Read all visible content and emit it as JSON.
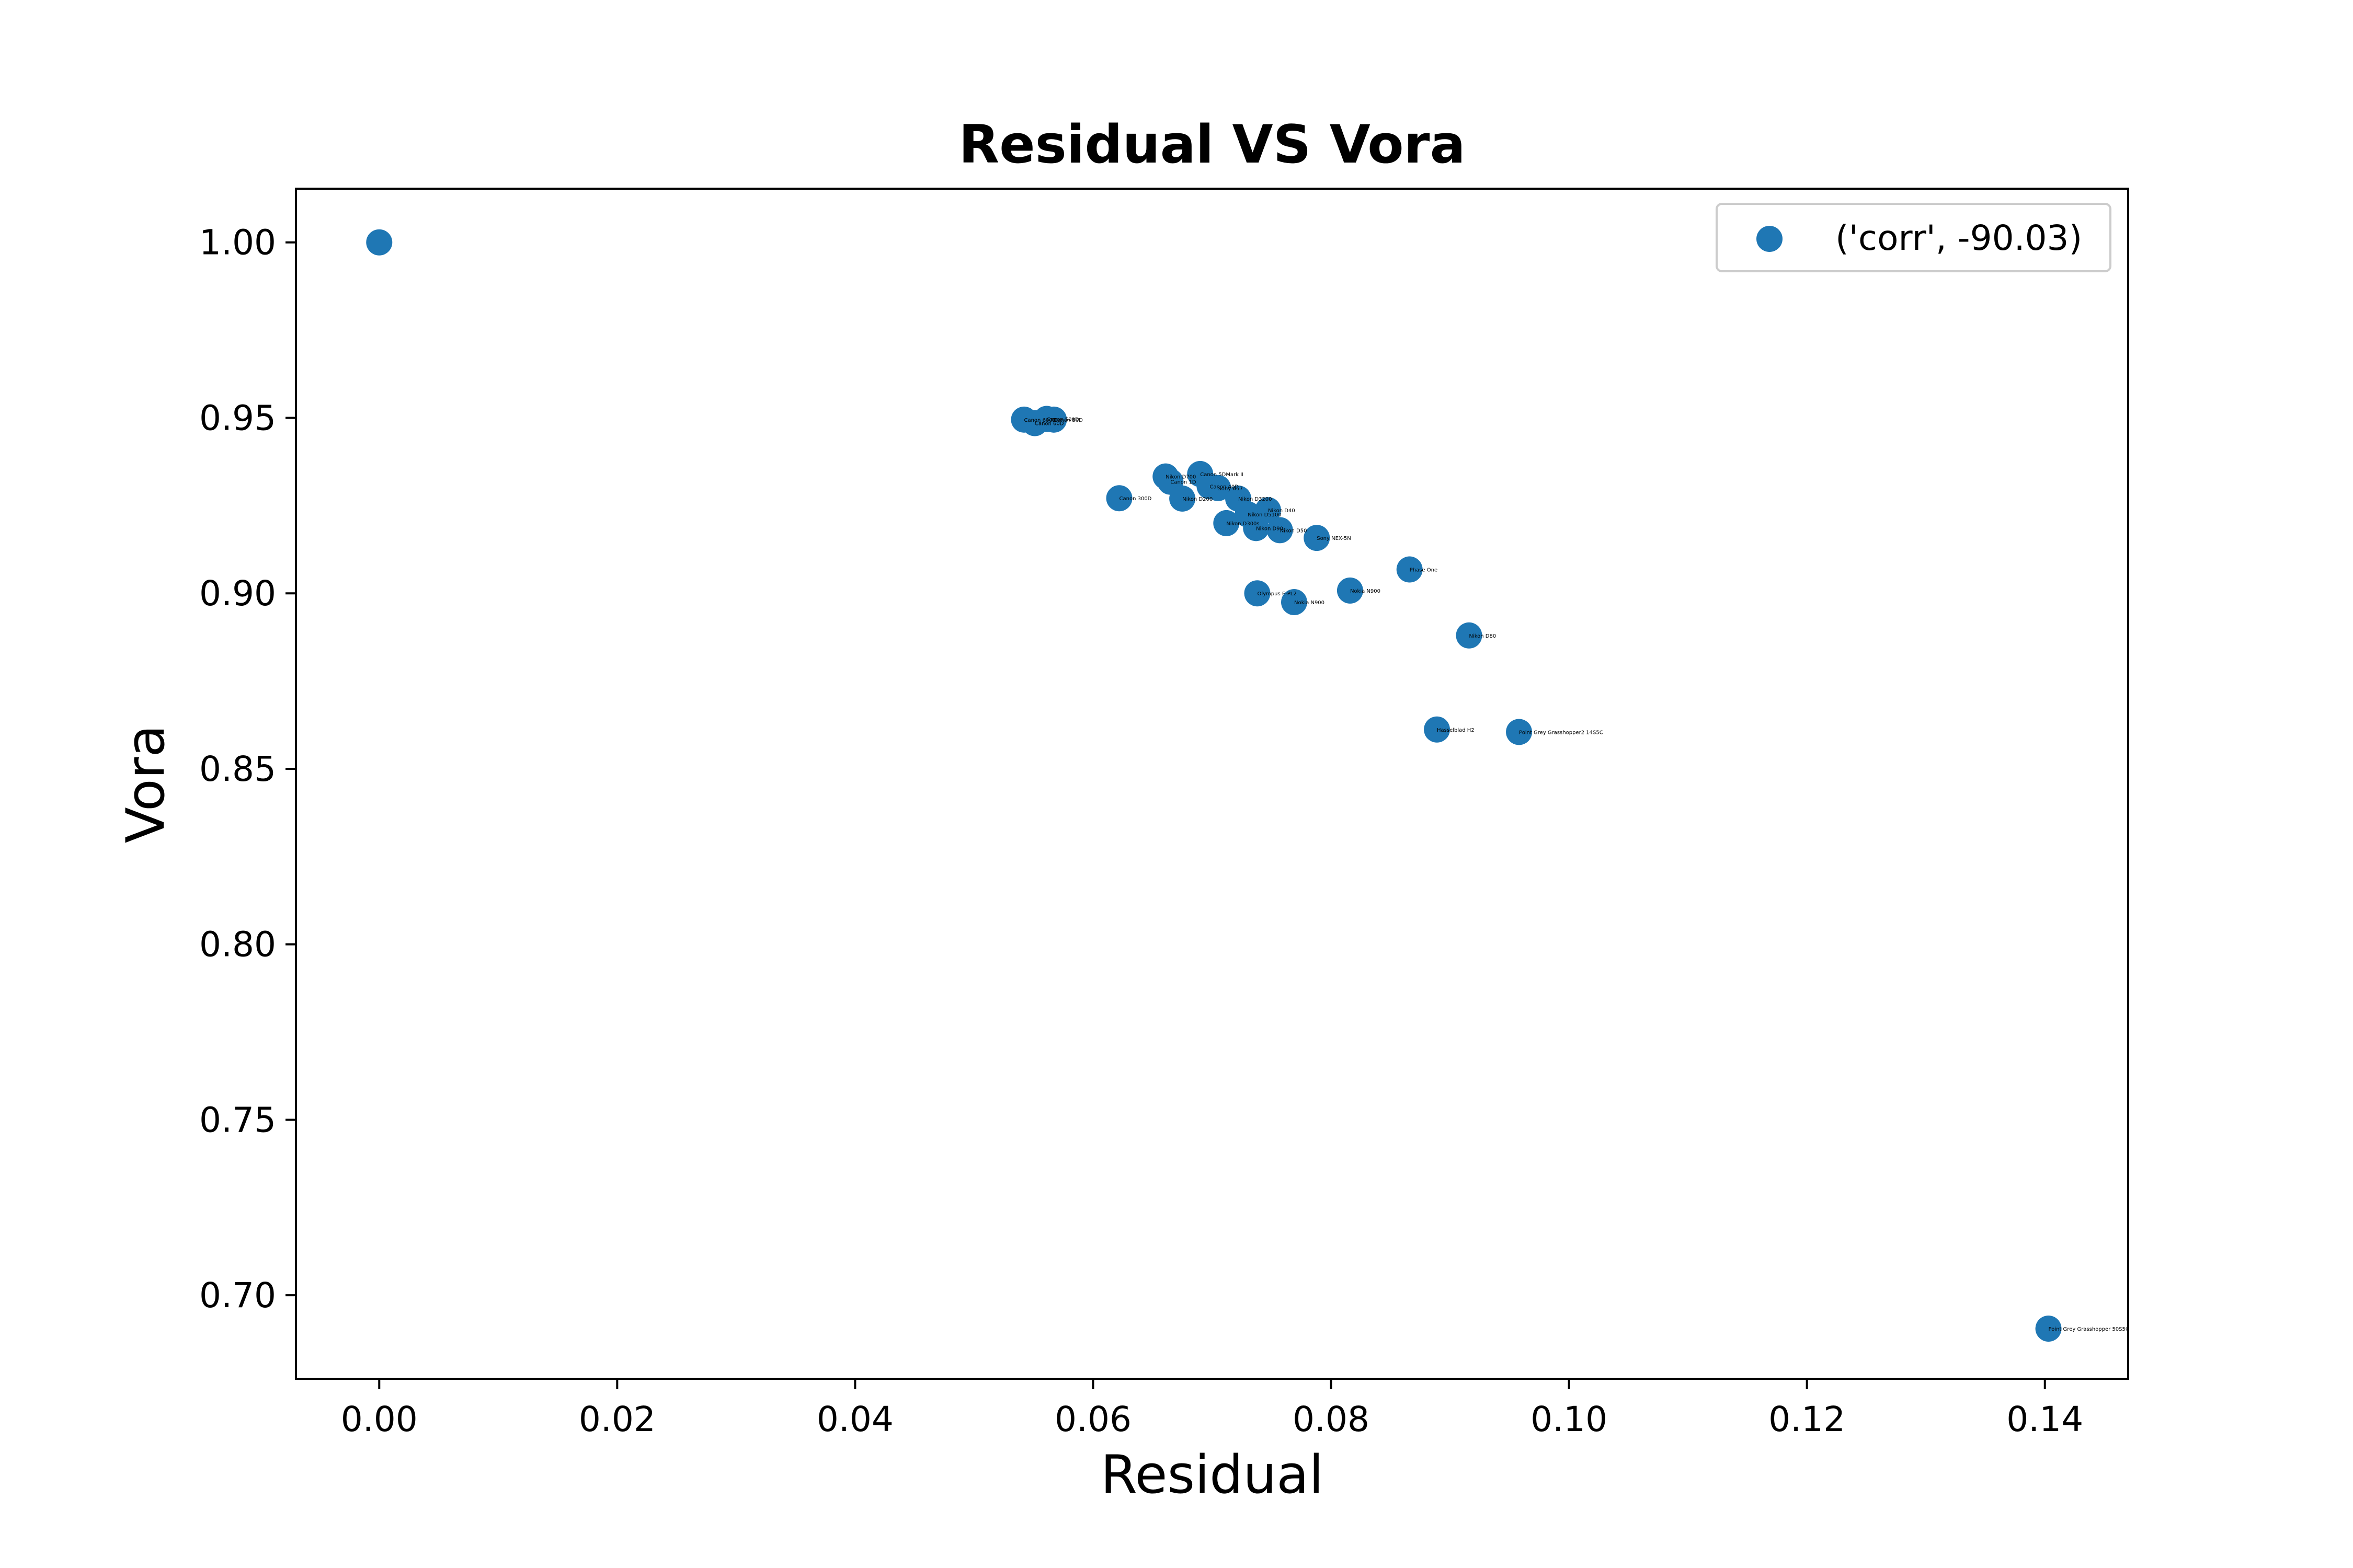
{
  "chart_data": {
    "type": "scatter",
    "title": "Residual VS Vora",
    "xlabel": "Residual",
    "ylabel": "Vora",
    "xlim": [
      -0.007,
      0.147
    ],
    "ylim": [
      0.6762,
      1.0153
    ],
    "xticks": [
      0.0,
      0.02,
      0.04,
      0.06,
      0.08,
      0.1,
      0.12,
      0.14
    ],
    "xtick_labels": [
      "0.00",
      "0.02",
      "0.04",
      "0.06",
      "0.08",
      "0.10",
      "0.12",
      "0.14"
    ],
    "yticks": [
      0.7,
      0.75,
      0.8,
      0.85,
      0.9,
      0.95,
      1.0
    ],
    "ytick_labels": [
      "0.70",
      "0.75",
      "0.80",
      "0.85",
      "0.90",
      "0.95",
      "1.00"
    ],
    "grid": false,
    "legend_position": "top-right",
    "color": "#1f77b4",
    "series": [
      {
        "name": "('corr', -90.03)",
        "points": [
          {
            "x": 0.0,
            "y": 1.0,
            "label": ""
          },
          {
            "x": 0.0542,
            "y": 0.9495,
            "label": "Canon 600D"
          },
          {
            "x": 0.0551,
            "y": 0.9485,
            "label": "Canon 60D"
          },
          {
            "x": 0.0561,
            "y": 0.9497,
            "label": "Canon 500D"
          },
          {
            "x": 0.0567,
            "y": 0.9495,
            "label": "Canon 50D"
          },
          {
            "x": 0.0622,
            "y": 0.9271,
            "label": "Canon 300D"
          },
          {
            "x": 0.0661,
            "y": 0.9333,
            "label": "Nikon D700"
          },
          {
            "x": 0.0665,
            "y": 0.9318,
            "label": "Canon 1D"
          },
          {
            "x": 0.0675,
            "y": 0.927,
            "label": "Nikon D200"
          },
          {
            "x": 0.069,
            "y": 0.934,
            "label": "Canon 5DMark II"
          },
          {
            "x": 0.0698,
            "y": 0.9305,
            "label": "Canon 40D"
          },
          {
            "x": 0.0705,
            "y": 0.93,
            "label": "Sony A57"
          },
          {
            "x": 0.0712,
            "y": 0.92,
            "label": "Nikon D300s"
          },
          {
            "x": 0.0722,
            "y": 0.927,
            "label": "Nikon D3200"
          },
          {
            "x": 0.073,
            "y": 0.9225,
            "label": "Nikon D5100"
          },
          {
            "x": 0.0737,
            "y": 0.9186,
            "label": "Nikon D90"
          },
          {
            "x": 0.0738,
            "y": 0.9,
            "label": "Olympus E-PL2"
          },
          {
            "x": 0.0747,
            "y": 0.9237,
            "label": "Nikon D40"
          },
          {
            "x": 0.0757,
            "y": 0.918,
            "label": "Nikon D50"
          },
          {
            "x": 0.0769,
            "y": 0.8975,
            "label": "Nokia N900"
          },
          {
            "x": 0.0788,
            "y": 0.9158,
            "label": "Sony NEX-5N"
          },
          {
            "x": 0.0816,
            "y": 0.9008,
            "label": "Nokia N900"
          },
          {
            "x": 0.0866,
            "y": 0.9068,
            "label": "Phase One"
          },
          {
            "x": 0.0889,
            "y": 0.8612,
            "label": "Hasselblad H2"
          },
          {
            "x": 0.0916,
            "y": 0.888,
            "label": "Nikon D80"
          },
          {
            "x": 0.0958,
            "y": 0.8605,
            "label": "Point Grey Grasshopper2 14S5C"
          },
          {
            "x": 0.1403,
            "y": 0.6905,
            "label": "Point Grey Grasshopper 50S5C"
          }
        ]
      }
    ]
  }
}
